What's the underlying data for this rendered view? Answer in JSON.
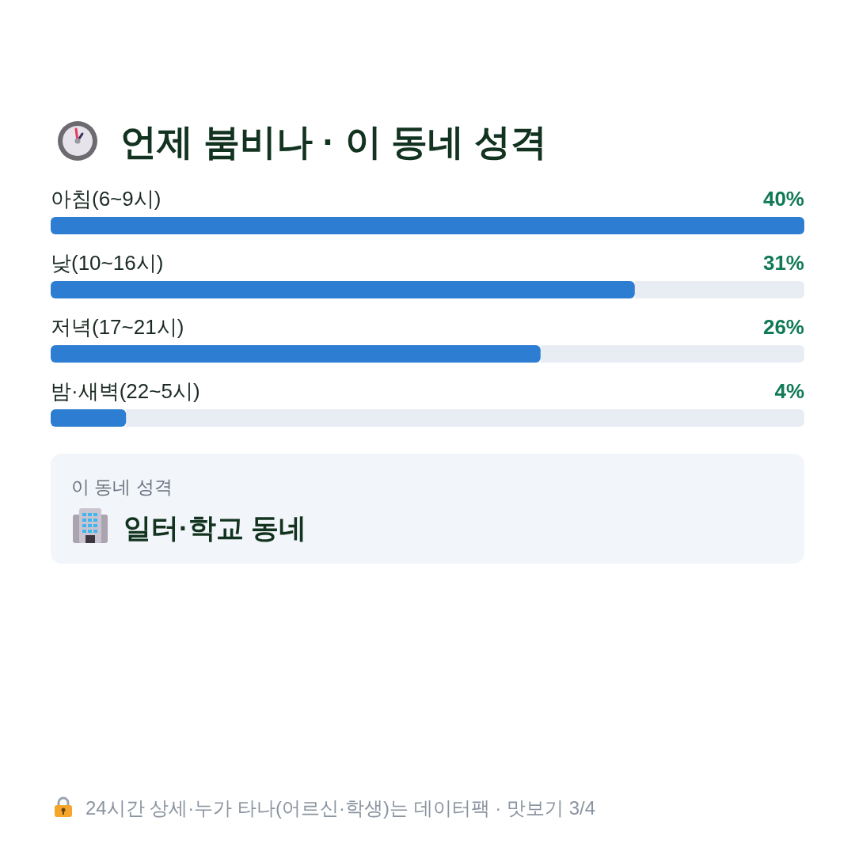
{
  "chart_data": {
    "type": "bar",
    "orientation": "horizontal",
    "title": "언제 붐비나 · 이 동네 성격",
    "categories": [
      "아침(6~9시)",
      "낮(10~16시)",
      "저녁(17~21시)",
      "밤·새벽(22~5시)"
    ],
    "values": [
      40,
      31,
      26,
      4
    ],
    "value_labels": [
      "40%",
      "31%",
      "26%",
      "4%"
    ],
    "color": "#2d7dd3",
    "xlim": [
      0,
      40
    ],
    "annotations": [
      "이 동네 성격",
      "일터·학교 동네",
      "24시간 상세·누가 타나(어르신·학생)는 데이터팩 · 맛보기 3/4"
    ]
  }
}
